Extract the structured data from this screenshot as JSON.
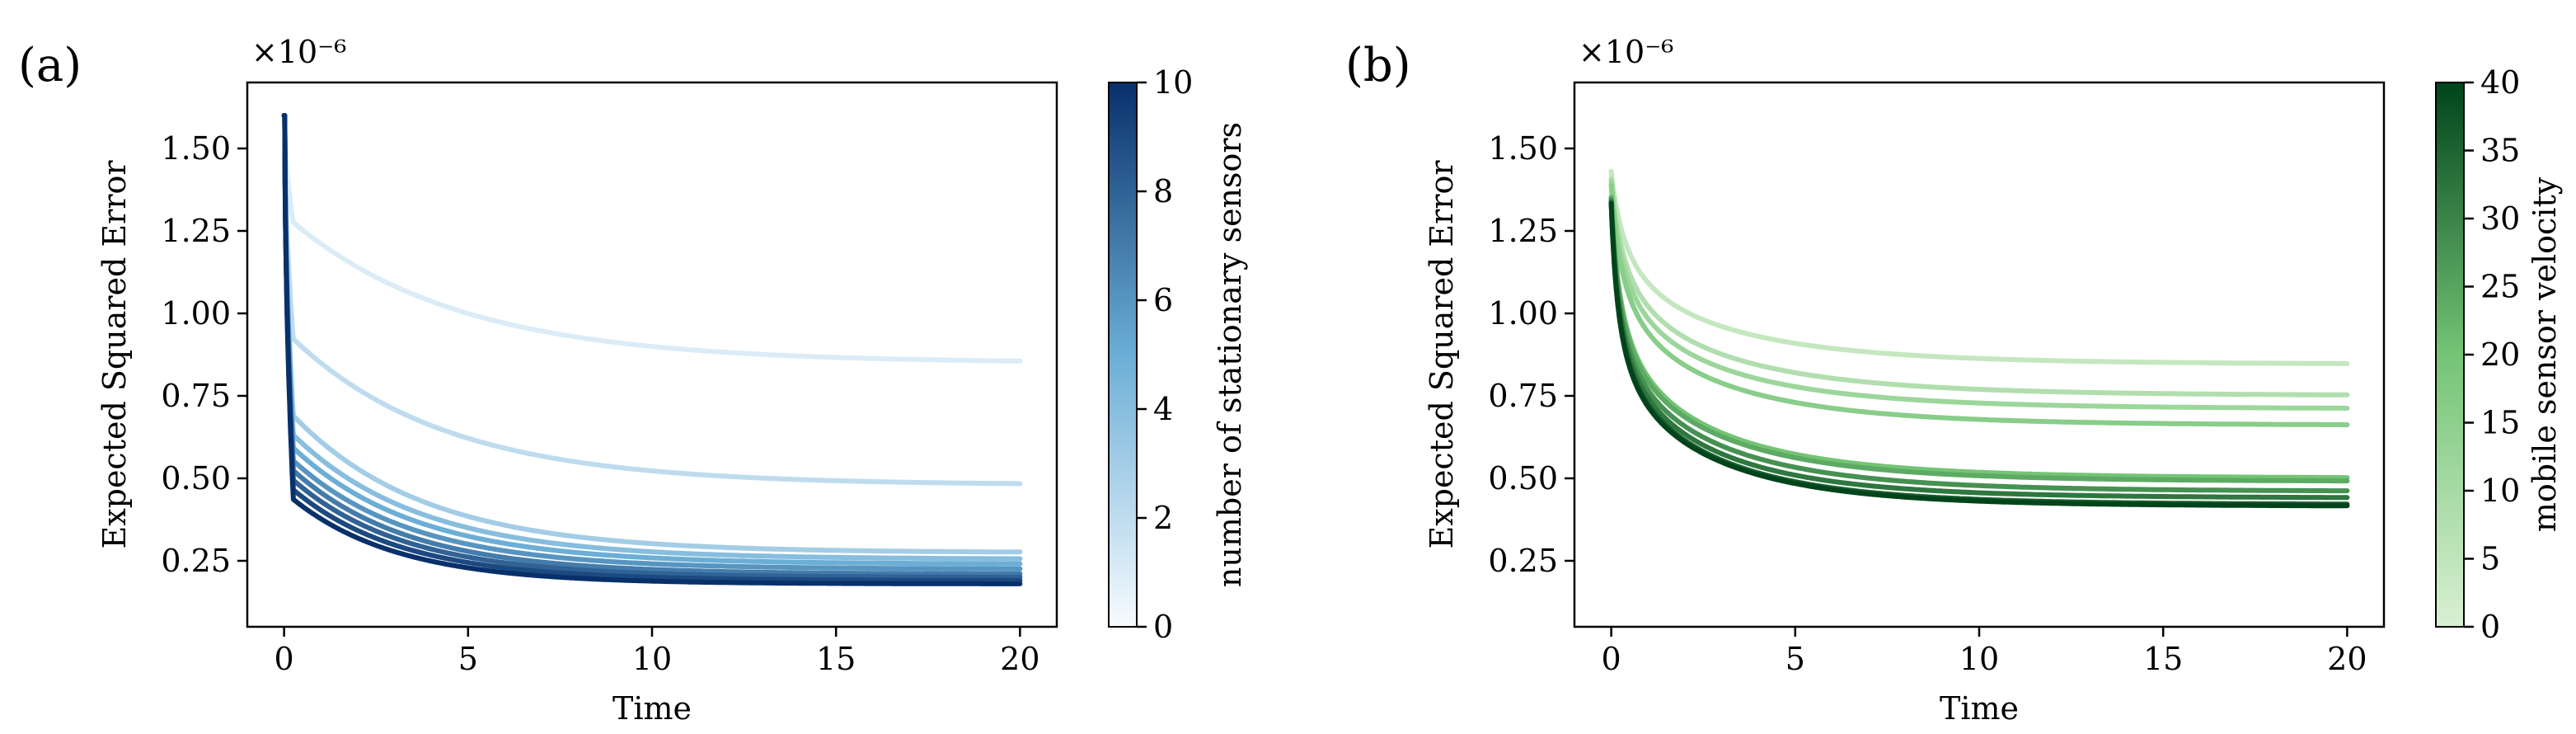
{
  "chart_data": [
    {
      "type": "line",
      "panel_label": "(a)",
      "title": "",
      "xlabel": "Time",
      "ylabel": "Expected Squared Error",
      "y_scale_label": "×10⁻⁶",
      "xlim": [
        -1,
        21
      ],
      "ylim": [
        0.05,
        1.7
      ],
      "xticks": [
        0,
        5,
        10,
        15,
        20
      ],
      "xtick_labels": [
        "0",
        "5",
        "10",
        "15",
        "20"
      ],
      "yticks": [
        0.25,
        0.5,
        0.75,
        1.0,
        1.25,
        1.5
      ],
      "ytick_labels": [
        "0.25",
        "0.50",
        "0.75",
        "1.00",
        "1.25",
        "1.50"
      ],
      "colormap": "Blues",
      "colorbar": {
        "label": "number of stationary sensors",
        "range": [
          0,
          10
        ],
        "ticks": [
          0,
          2,
          4,
          6,
          8,
          10
        ],
        "tick_labels": [
          "0",
          "2",
          "4",
          "6",
          "8",
          "10"
        ],
        "low_color": "#f7fbff",
        "mid_color": "#6baed6",
        "high_color": "#08306b"
      },
      "series": [
        {
          "name": "1",
          "color_value": 1,
          "initial": 1.6,
          "jump": 1.3,
          "final": 0.85,
          "rate": 0.22
        },
        {
          "name": "2",
          "color_value": 2,
          "initial": 1.6,
          "jump": 0.95,
          "final": 0.48,
          "rate": 0.24
        },
        {
          "name": "3",
          "color_value": 3,
          "initial": 1.6,
          "jump": 0.72,
          "final": 0.275,
          "rate": 0.28
        },
        {
          "name": "4",
          "color_value": 4,
          "initial": 1.6,
          "jump": 0.66,
          "final": 0.255,
          "rate": 0.29
        },
        {
          "name": "5",
          "color_value": 5,
          "initial": 1.6,
          "jump": 0.62,
          "final": 0.24,
          "rate": 0.3
        },
        {
          "name": "6",
          "color_value": 6,
          "initial": 1.6,
          "jump": 0.58,
          "final": 0.225,
          "rate": 0.31
        },
        {
          "name": "7",
          "color_value": 7,
          "initial": 1.6,
          "jump": 0.55,
          "final": 0.21,
          "rate": 0.32
        },
        {
          "name": "8",
          "color_value": 8,
          "initial": 1.6,
          "jump": 0.52,
          "final": 0.2,
          "rate": 0.33
        },
        {
          "name": "9",
          "color_value": 9,
          "initial": 1.6,
          "jump": 0.49,
          "final": 0.19,
          "rate": 0.34
        },
        {
          "name": "10",
          "color_value": 10,
          "initial": 1.6,
          "jump": 0.46,
          "final": 0.18,
          "rate": 0.35
        }
      ]
    },
    {
      "type": "line",
      "panel_label": "(b)",
      "title": "",
      "xlabel": "Time",
      "ylabel": "Expected Squared Error",
      "y_scale_label": "×10⁻⁶",
      "xlim": [
        -1,
        21
      ],
      "ylim": [
        0.05,
        1.7
      ],
      "xticks": [
        0,
        5,
        10,
        15,
        20
      ],
      "xtick_labels": [
        "0",
        "5",
        "10",
        "15",
        "20"
      ],
      "yticks": [
        0.25,
        0.5,
        0.75,
        1.0,
        1.25,
        1.5
      ],
      "ytick_labels": [
        "0.25",
        "0.50",
        "0.75",
        "1.00",
        "1.25",
        "1.50"
      ],
      "colormap": "Greens",
      "colorbar": {
        "label": "mobile sensor velocity",
        "range": [
          0,
          40
        ],
        "ticks": [
          0,
          5,
          10,
          15,
          20,
          25,
          30,
          35,
          40
        ],
        "tick_labels": [
          "0",
          "5",
          "10",
          "15",
          "20",
          "25",
          "30",
          "35",
          "40"
        ],
        "low_color": "#d9f0d3",
        "mid_color": "#74c476",
        "high_color": "#00441b"
      },
      "series": [
        {
          "name": "4",
          "color_value": 4,
          "initial": 1.6,
          "final": 0.845,
          "k0": 0.55,
          "rate": 0.2
        },
        {
          "name": "8",
          "color_value": 8,
          "initial": 1.6,
          "final": 0.75,
          "k0": 0.6,
          "rate": 0.2
        },
        {
          "name": "12",
          "color_value": 12,
          "initial": 1.6,
          "final": 0.71,
          "k0": 0.65,
          "rate": 0.21
        },
        {
          "name": "16",
          "color_value": 16,
          "initial": 1.6,
          "final": 0.66,
          "k0": 0.7,
          "rate": 0.21
        },
        {
          "name": "20",
          "color_value": 20,
          "initial": 1.6,
          "final": 0.5,
          "k0": 0.85,
          "rate": 0.22
        },
        {
          "name": "24",
          "color_value": 24,
          "initial": 1.6,
          "final": 0.49,
          "k0": 0.9,
          "rate": 0.22
        },
        {
          "name": "28",
          "color_value": 28,
          "initial": 1.6,
          "final": 0.46,
          "k0": 0.95,
          "rate": 0.22
        },
        {
          "name": "32",
          "color_value": 32,
          "initial": 1.6,
          "final": 0.44,
          "k0": 1.0,
          "rate": 0.23
        },
        {
          "name": "36",
          "color_value": 36,
          "initial": 1.6,
          "final": 0.42,
          "k0": 1.05,
          "rate": 0.23
        },
        {
          "name": "40",
          "color_value": 40,
          "initial": 1.6,
          "final": 0.415,
          "k0": 1.1,
          "rate": 0.23
        }
      ]
    }
  ]
}
